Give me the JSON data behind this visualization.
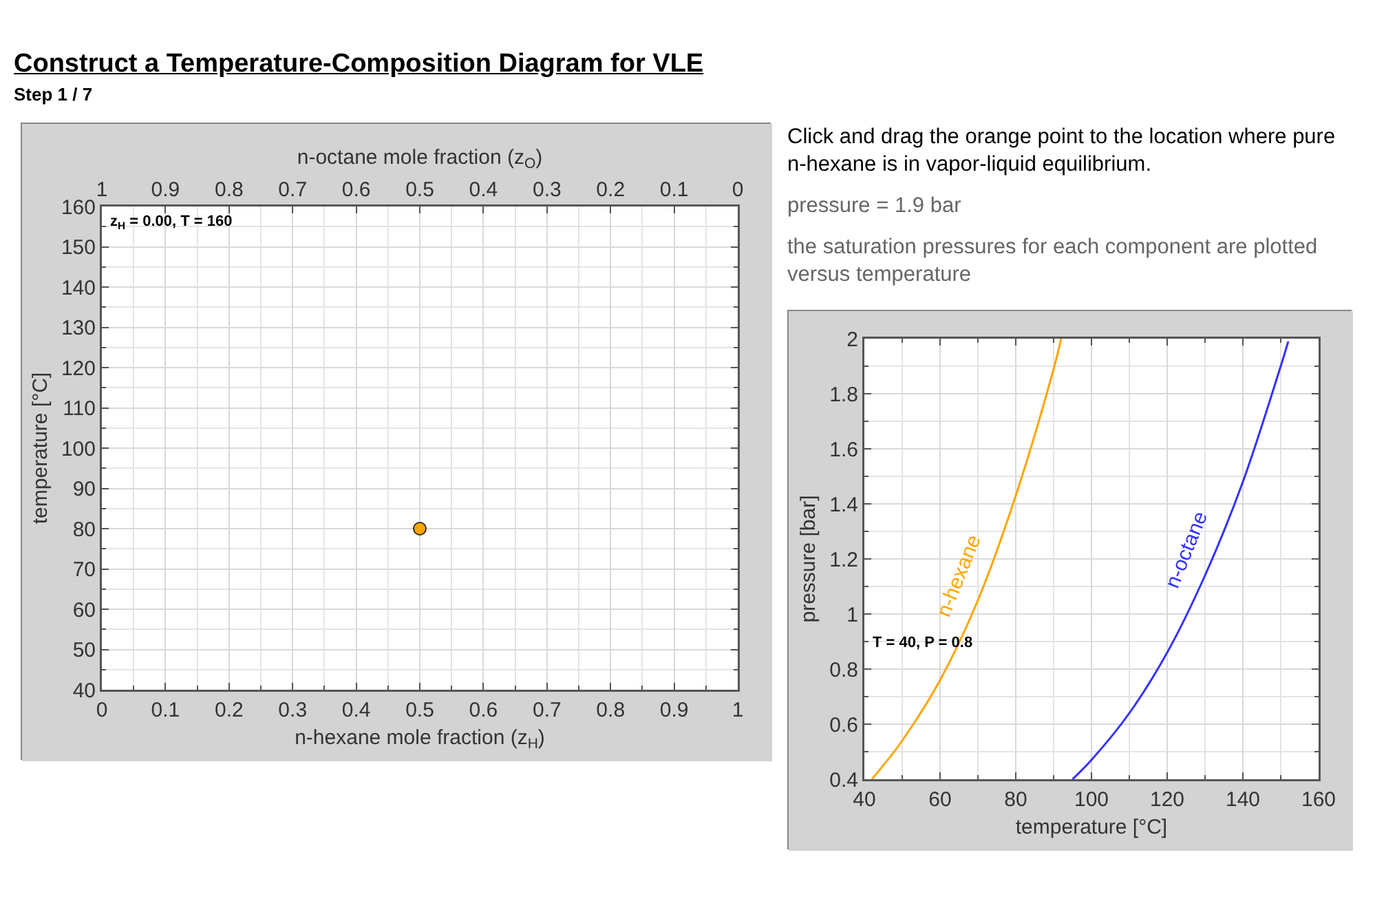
{
  "chart_data": [
    {
      "type": "scatter",
      "title": "Construct a Temperature-Composition Diagram for VLE",
      "subtitle": "Step 1 / 7",
      "xlabel": "n-hexane mole fraction (z$_{H}$)",
      "x2label": "n-octane mole fraction (z$_{O}$)",
      "ylabel": "temperature [°C]",
      "x": [
        0.5
      ],
      "values": [
        80
      ],
      "color": "#ffa500",
      "marker": "circle",
      "xlim": [
        0,
        1
      ],
      "xticks": [
        0,
        0.1,
        0.2,
        0.3,
        0.4,
        0.5,
        0.6,
        0.7,
        0.8,
        0.9,
        1
      ],
      "x2lim": [
        1,
        0
      ],
      "x2ticks": [
        1,
        0.9,
        0.8,
        0.7,
        0.6,
        0.5,
        0.4,
        0.3,
        0.2,
        0.1,
        0
      ],
      "ylim": [
        40,
        160
      ],
      "yticks": [
        40,
        50,
        60,
        70,
        80,
        90,
        100,
        110,
        120,
        130,
        140,
        150,
        160
      ],
      "grid": true,
      "annotations": [
        "z$_{H}$ = 0.00, T = 160"
      ]
    },
    {
      "type": "line",
      "xlabel": "temperature [°C]",
      "ylabel": "pressure [bar]",
      "line_style": "solid",
      "marker": "none",
      "series": [
        {
          "name": "n-hexane",
          "color": "#ffa500",
          "x": [
            42,
            50,
            60,
            70,
            80,
            90,
            92
          ],
          "values": [
            0.4,
            0.54,
            0.76,
            1.05,
            1.43,
            1.89,
            2.0
          ]
        },
        {
          "name": "n-octane",
          "color": "#3333ff",
          "x": [
            95,
            100,
            110,
            120,
            130,
            140,
            150,
            152
          ],
          "values": [
            0.4,
            0.47,
            0.64,
            0.86,
            1.14,
            1.48,
            1.9,
            1.99
          ]
        }
      ],
      "xlim": [
        40,
        160
      ],
      "xticks": [
        40,
        60,
        80,
        100,
        120,
        140,
        160
      ],
      "ylim": [
        0.4,
        2
      ],
      "yticks": [
        0.4,
        0.6,
        0.8,
        1,
        1.2,
        1.4,
        1.6,
        1.8,
        2
      ],
      "grid": true,
      "annotations": [
        "Click and drag the orange point to the location where pure n-hexane is in vapor-liquid equilibrium.",
        "pressure = 1.9 bar",
        "the saturation pressures for each component are plotted versus temperature",
        "T = 40, P = 0.8"
      ]
    }
  ]
}
